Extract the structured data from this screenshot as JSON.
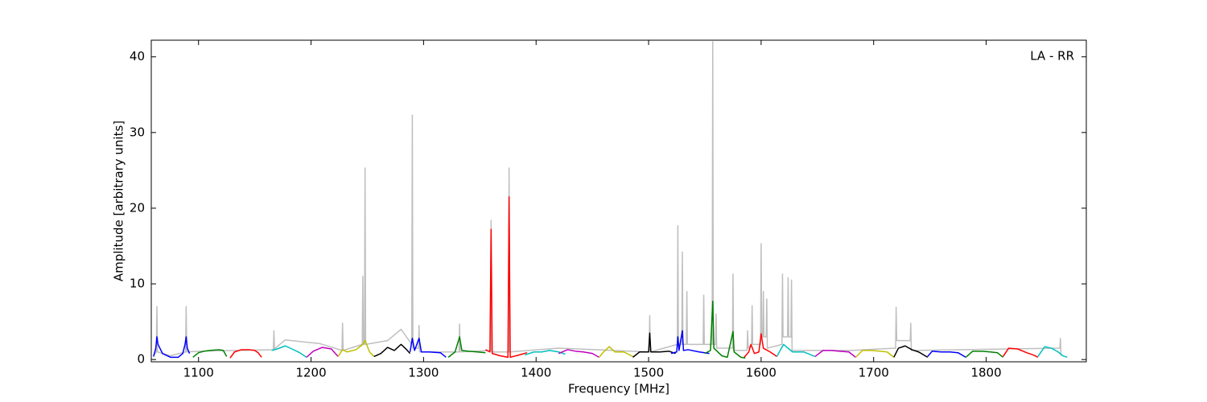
{
  "chart_data": {
    "type": "line",
    "xlabel": "Frequency [MHz]",
    "ylabel": "Amplitude [arbitrary units]",
    "annotation": "LA - RR",
    "xlim": [
      1058,
      1889
    ],
    "ylim": [
      -0.3,
      42.2
    ],
    "xticks": [
      1100,
      1200,
      1300,
      1400,
      1500,
      1600,
      1700,
      1800
    ],
    "yticks": [
      0,
      10,
      20,
      30,
      40
    ],
    "series": [
      {
        "color": "#bfbfbf",
        "x": [
          1060,
          1062.5,
          1063,
          1063.5,
          1075,
          1088.5,
          1089,
          1089.5,
          1100,
          1166.5,
          1167,
          1167.5,
          1177,
          1208,
          1227.5,
          1228,
          1228.5,
          1245.5,
          1246,
          1246.5,
          1247.5,
          1248,
          1248.5,
          1268,
          1280,
          1289.5,
          1290,
          1290.5,
          1295.5,
          1296,
          1296.5,
          1331.5,
          1332,
          1332.5,
          1359.5,
          1360,
          1360.5,
          1375.5,
          1376,
          1376.5,
          1420,
          1500.5,
          1501,
          1501.5,
          1525.5,
          1526,
          1526.5,
          1529.5,
          1530,
          1530.5,
          1533.5,
          1534,
          1534.5,
          1548.5,
          1549,
          1549.5,
          1556.5,
          1557,
          1557.5,
          1559.5,
          1560,
          1560.5,
          1574.5,
          1575,
          1575.5,
          1587.5,
          1588,
          1588.5,
          1591.5,
          1592,
          1592.5,
          1599.5,
          1600,
          1600.5,
          1601.5,
          1602,
          1602.5,
          1604.5,
          1605,
          1605.5,
          1618.5,
          1619,
          1619.5,
          1623.5,
          1624,
          1624.5,
          1626.5,
          1627,
          1627.5,
          1680,
          1719.5,
          1720,
          1720.5,
          1732.5,
          1733,
          1733.5,
          1865.5,
          1866,
          1866.5
        ],
        "values": [
          0.5,
          1,
          7,
          1,
          0.5,
          1,
          7,
          1,
          1.1,
          1.3,
          3.8,
          1.4,
          2.6,
          2.1,
          1.2,
          4.8,
          1.2,
          2,
          11,
          2,
          2,
          25.3,
          2,
          2.5,
          4,
          2,
          32.3,
          1.5,
          1.5,
          4.5,
          1,
          1,
          4.7,
          1,
          1.2,
          18.4,
          1,
          1,
          25.3,
          1,
          1.5,
          1,
          5.8,
          1,
          2,
          17.7,
          2,
          2,
          14.2,
          2,
          2,
          9,
          2,
          2,
          8.5,
          2,
          2,
          42,
          2,
          2,
          6,
          1.5,
          1.5,
          11.3,
          1.2,
          1.2,
          3.8,
          1.5,
          2,
          7.1,
          2,
          2,
          15.3,
          3,
          3,
          9,
          3,
          3,
          8,
          1.5,
          2,
          11.3,
          3,
          3,
          10.8,
          3,
          3,
          10.5,
          1.2,
          1.2,
          1.5,
          6.9,
          2.5,
          2.5,
          4.8,
          1.2,
          1.5,
          2.8,
          0.5
        ]
      },
      {
        "color": "#0000ff",
        "x": [
          1060,
          1062,
          1063,
          1064,
          1068,
          1075,
          1082,
          1086,
          1088,
          1089,
          1090,
          1092
        ],
        "values": [
          0.4,
          1.5,
          3,
          2,
          0.8,
          0.3,
          0.3,
          0.8,
          2,
          3,
          1.5,
          0.8
        ]
      },
      {
        "color": "#008000",
        "x": [
          1095,
          1100,
          1105,
          1110,
          1118,
          1122,
          1125
        ],
        "values": [
          0.3,
          0.9,
          1.1,
          1.2,
          1.3,
          1.2,
          0.4
        ]
      },
      {
        "color": "#ff0000",
        "x": [
          1128,
          1132,
          1138,
          1145,
          1150,
          1153,
          1156
        ],
        "values": [
          0.2,
          1,
          1.3,
          1.3,
          1.2,
          0.9,
          0.3
        ]
      },
      {
        "color": "#00bfbf",
        "x": [
          1165,
          1170,
          1177,
          1183,
          1190,
          1196
        ],
        "values": [
          1.2,
          1.4,
          1.8,
          1.4,
          0.9,
          0.3
        ]
      },
      {
        "color": "#bf00bf",
        "x": [
          1196,
          1202,
          1210,
          1218,
          1224
        ],
        "values": [
          0.3,
          1.1,
          1.6,
          1.4,
          0.4
        ]
      },
      {
        "color": "#bfbf00",
        "x": [
          1224,
          1228,
          1232,
          1240,
          1246,
          1248,
          1252,
          1256
        ],
        "values": [
          0.4,
          1.3,
          1,
          1.3,
          2,
          2.5,
          1,
          0.4
        ]
      },
      {
        "color": "#000000",
        "x": [
          1256,
          1262,
          1268,
          1274,
          1280,
          1285,
          1288
        ],
        "values": [
          0.4,
          0.8,
          1.6,
          1.2,
          2,
          1.3,
          0.8
        ]
      },
      {
        "color": "#0000ff",
        "x": [
          1288,
          1290,
          1292,
          1296,
          1298,
          1305,
          1315,
          1320
        ],
        "values": [
          1,
          2.8,
          1.2,
          2.8,
          1,
          1,
          0.9,
          0.3
        ]
      },
      {
        "color": "#008000",
        "x": [
          1322,
          1328,
          1332,
          1334,
          1340,
          1348,
          1355
        ],
        "values": [
          0.3,
          1,
          3,
          1.2,
          1.1,
          1,
          0.9
        ]
      },
      {
        "color": "#ff0000",
        "x": [
          1355,
          1359,
          1360,
          1361,
          1368,
          1375,
          1376,
          1377,
          1385,
          1392
        ],
        "values": [
          1.3,
          1,
          17.2,
          0.8,
          0.5,
          0.3,
          21.5,
          0.3,
          0.6,
          0.9
        ]
      },
      {
        "color": "#00bfbf",
        "x": [
          1390,
          1398,
          1405,
          1412,
          1420,
          1426
        ],
        "values": [
          0.6,
          1,
          1,
          1.2,
          1,
          0.7
        ]
      },
      {
        "color": "#bf00bf",
        "x": [
          1420,
          1428,
          1435,
          1442,
          1450,
          1456
        ],
        "values": [
          0.8,
          1.3,
          1.1,
          1,
          0.8,
          0.3
        ]
      },
      {
        "color": "#bfbf00",
        "x": [
          1456,
          1460,
          1465,
          1470,
          1478,
          1486
        ],
        "values": [
          0.3,
          1,
          1.7,
          1,
          1,
          0.4
        ]
      },
      {
        "color": "#000000",
        "x": [
          1486,
          1492,
          1500,
          1501,
          1502,
          1510,
          1518,
          1524
        ],
        "values": [
          0.3,
          1,
          1,
          3.5,
          1,
          1,
          1.1,
          0.8
        ]
      },
      {
        "color": "#0000ff",
        "x": [
          1520,
          1525,
          1526,
          1527,
          1530,
          1531,
          1535,
          1545,
          1554
        ],
        "values": [
          0.8,
          1,
          3,
          1.2,
          3.8,
          1.2,
          1.3,
          1,
          0.8
        ]
      },
      {
        "color": "#008000",
        "x": [
          1550,
          1555,
          1557,
          1558,
          1565,
          1570,
          1575,
          1576,
          1582,
          1586
        ],
        "values": [
          0.8,
          1.2,
          7.7,
          1.5,
          0.5,
          0.3,
          3.7,
          1,
          0.3,
          0.2
        ]
      },
      {
        "color": "#ff0000",
        "x": [
          1585,
          1589,
          1591,
          1594,
          1598,
          1600,
          1602,
          1608,
          1614
        ],
        "values": [
          0.3,
          1,
          2,
          0.8,
          1,
          3.4,
          1.5,
          1,
          0.4
        ]
      },
      {
        "color": "#00bfbf",
        "x": [
          1614,
          1618,
          1620,
          1623,
          1628,
          1638,
          1648
        ],
        "values": [
          0.4,
          1.5,
          2,
          1.6,
          1,
          1,
          0.4
        ]
      },
      {
        "color": "#bf00bf",
        "x": [
          1648,
          1655,
          1662,
          1670,
          1678,
          1684
        ],
        "values": [
          0.4,
          1.2,
          1.2,
          1.1,
          1,
          0.3
        ]
      },
      {
        "color": "#bfbf00",
        "x": [
          1684,
          1690,
          1698,
          1706,
          1712,
          1718
        ],
        "values": [
          0.3,
          1.2,
          1.2,
          1.1,
          1,
          0.3
        ]
      },
      {
        "color": "#000000",
        "x": [
          1718,
          1722,
          1728,
          1734,
          1740,
          1748
        ],
        "values": [
          0.3,
          1.5,
          1.8,
          1.3,
          1,
          0.3
        ]
      },
      {
        "color": "#0000ff",
        "x": [
          1748,
          1752,
          1760,
          1768,
          1775,
          1782
        ],
        "values": [
          0.4,
          1.1,
          1,
          1,
          0.9,
          0.3
        ]
      },
      {
        "color": "#008000",
        "x": [
          1782,
          1788,
          1796,
          1804,
          1810,
          1815
        ],
        "values": [
          0.3,
          1.1,
          1.1,
          1,
          0.9,
          0.3
        ]
      },
      {
        "color": "#ff0000",
        "x": [
          1815,
          1820,
          1828,
          1836,
          1842,
          1846
        ],
        "values": [
          0.4,
          1.5,
          1.4,
          0.9,
          0.6,
          0.3
        ]
      },
      {
        "color": "#00bfbf",
        "x": [
          1846,
          1852,
          1858,
          1864,
          1868,
          1872
        ],
        "values": [
          0.4,
          1.7,
          1.5,
          1,
          0.5,
          0.3
        ]
      }
    ]
  }
}
